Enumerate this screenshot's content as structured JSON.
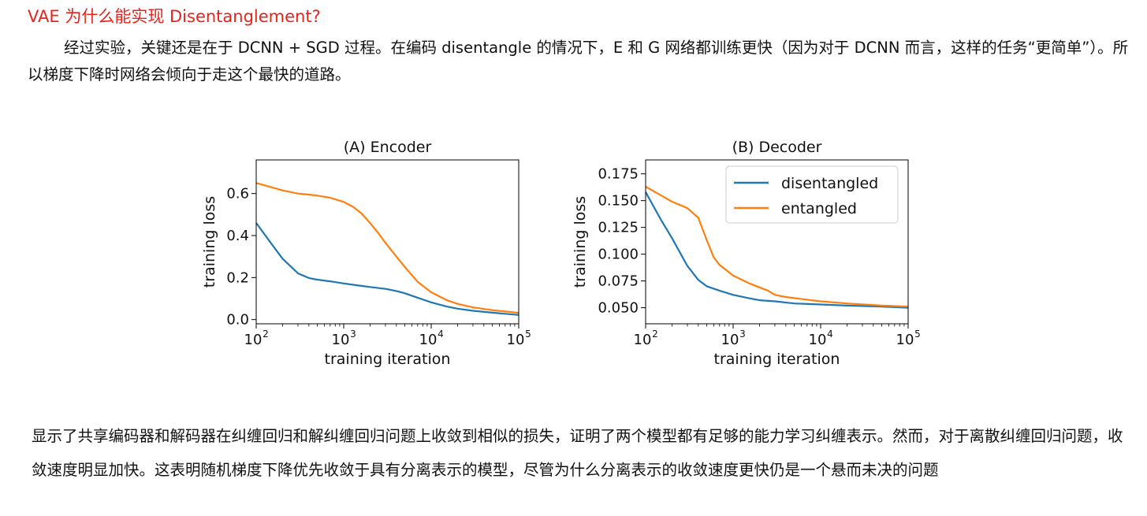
{
  "heading": "VAE 为什么能实现 Disentanglement?",
  "intro_paragraph": "经过实验，关键还是在于 DCNN + SGD 过程。在编码 disentangle 的情况下，E 和 G 网络都训练更快（因为对于 DCNN 而言，这样的任务“更简单”）。所以梯度下降时网络会倾向于走这个最快的道路。",
  "conclusion_paragraph": "显示了共享编码器和解码器在纠缠回归和解纠缠回归问题上收敛到相似的损失，证明了两个模型都有足够的能力学习纠缠表示。然而，对于离散纠缠回归问题，收敛速度明显加快。这表明随机梯度下降优先收敛于具有分离表示的模型，尽管为什么分离表示的收敛速度更快仍是一个悬而未决的问题",
  "chart_data": [
    {
      "type": "line",
      "title": "(A) Encoder",
      "xlabel": "training iteration",
      "ylabel": "training loss",
      "xscale": "log",
      "xlim": [
        100,
        100000
      ],
      "ylim": [
        -0.02,
        0.76
      ],
      "xticks": [
        100,
        1000,
        10000,
        100000
      ],
      "xtick_labels": [
        {
          "base": "10",
          "exp": "2"
        },
        {
          "base": "10",
          "exp": "3"
        },
        {
          "base": "10",
          "exp": "4"
        },
        {
          "base": "10",
          "exp": "5"
        }
      ],
      "yticks": [
        0.0,
        0.2,
        0.4,
        0.6
      ],
      "ytick_labels": [
        "0.0",
        "0.2",
        "0.4",
        "0.6"
      ],
      "legend": null,
      "series": [
        {
          "name": "disentangled",
          "color": "#1f77b4",
          "x": [
            100,
            150,
            200,
            300,
            400,
            500,
            700,
            1000,
            1500,
            2000,
            3000,
            4000,
            5000,
            7000,
            10000,
            15000,
            20000,
            30000,
            50000,
            100000
          ],
          "y": [
            0.46,
            0.36,
            0.29,
            0.22,
            0.198,
            0.19,
            0.182,
            0.172,
            0.162,
            0.155,
            0.146,
            0.136,
            0.125,
            0.104,
            0.082,
            0.062,
            0.052,
            0.042,
            0.033,
            0.022
          ]
        },
        {
          "name": "entangled",
          "color": "#ff7f0e",
          "x": [
            100,
            150,
            200,
            300,
            400,
            500,
            700,
            1000,
            1300,
            1600,
            2000,
            2500,
            3000,
            4000,
            5000,
            7000,
            10000,
            15000,
            20000,
            30000,
            50000,
            100000
          ],
          "y": [
            0.65,
            0.63,
            0.615,
            0.6,
            0.595,
            0.59,
            0.58,
            0.56,
            0.535,
            0.505,
            0.46,
            0.41,
            0.365,
            0.3,
            0.25,
            0.18,
            0.13,
            0.093,
            0.075,
            0.058,
            0.045,
            0.032
          ]
        }
      ]
    },
    {
      "type": "line",
      "title": "(B) Decoder",
      "xlabel": "training iteration",
      "ylabel": "training loss",
      "xscale": "log",
      "xlim": [
        100,
        100000
      ],
      "ylim": [
        0.035,
        0.188
      ],
      "xticks": [
        100,
        1000,
        10000,
        100000
      ],
      "xtick_labels": [
        {
          "base": "10",
          "exp": "2"
        },
        {
          "base": "10",
          "exp": "3"
        },
        {
          "base": "10",
          "exp": "4"
        },
        {
          "base": "10",
          "exp": "5"
        }
      ],
      "yticks": [
        0.05,
        0.075,
        0.1,
        0.125,
        0.15,
        0.175
      ],
      "ytick_labels": [
        "0.050",
        "0.075",
        "0.100",
        "0.125",
        "0.150",
        "0.175"
      ],
      "legend": "top-right",
      "series": [
        {
          "name": "disentangled",
          "color": "#1f77b4",
          "x": [
            100,
            150,
            200,
            300,
            400,
            500,
            700,
            1000,
            1500,
            2000,
            3000,
            5000,
            10000,
            20000,
            50000,
            100000
          ],
          "y": [
            0.158,
            0.132,
            0.115,
            0.089,
            0.076,
            0.07,
            0.066,
            0.062,
            0.059,
            0.057,
            0.056,
            0.054,
            0.053,
            0.052,
            0.051,
            0.05
          ]
        },
        {
          "name": "entangled",
          "color": "#ff7f0e",
          "x": [
            100,
            150,
            200,
            300,
            400,
            500,
            600,
            700,
            1000,
            1500,
            2000,
            2500,
            3000,
            4000,
            5000,
            10000,
            20000,
            50000,
            100000
          ],
          "y": [
            0.163,
            0.155,
            0.149,
            0.143,
            0.134,
            0.113,
            0.097,
            0.09,
            0.08,
            0.073,
            0.069,
            0.066,
            0.062,
            0.06,
            0.059,
            0.056,
            0.054,
            0.052,
            0.051
          ]
        }
      ]
    }
  ]
}
